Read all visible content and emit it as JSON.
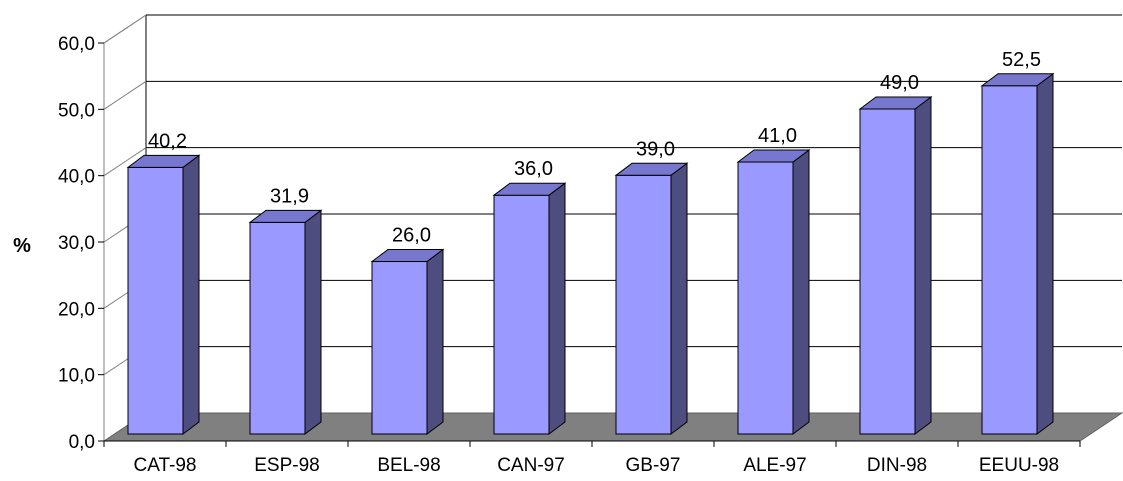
{
  "chart_data": {
    "type": "bar",
    "title": "",
    "xlabel": "",
    "ylabel": "%",
    "ylim": [
      0,
      60
    ],
    "yticks": [
      "0,0",
      "10,0",
      "20,0",
      "30,0",
      "40,0",
      "50,0",
      "60,0"
    ],
    "categories": [
      "CAT-98",
      "ESP-98",
      "BEL-98",
      "CAN-97",
      "GB-97",
      "ALE-97",
      "DIN-98",
      "EEUU-98"
    ],
    "values": [
      40.2,
      31.9,
      26.0,
      36.0,
      39.0,
      41.0,
      49.0,
      52.5
    ],
    "data_labels": [
      "40,2",
      "31,9",
      "26,0",
      "36,0",
      "39,0",
      "41,0",
      "49,0",
      "52,5"
    ],
    "grid": true,
    "legend": "none",
    "style": "3d-column",
    "colors": {
      "bar_front": "#9999ff",
      "bar_side": "#4d4d80",
      "bar_top": "#7777d0",
      "floor": "#808080",
      "grid": "#000000"
    }
  }
}
